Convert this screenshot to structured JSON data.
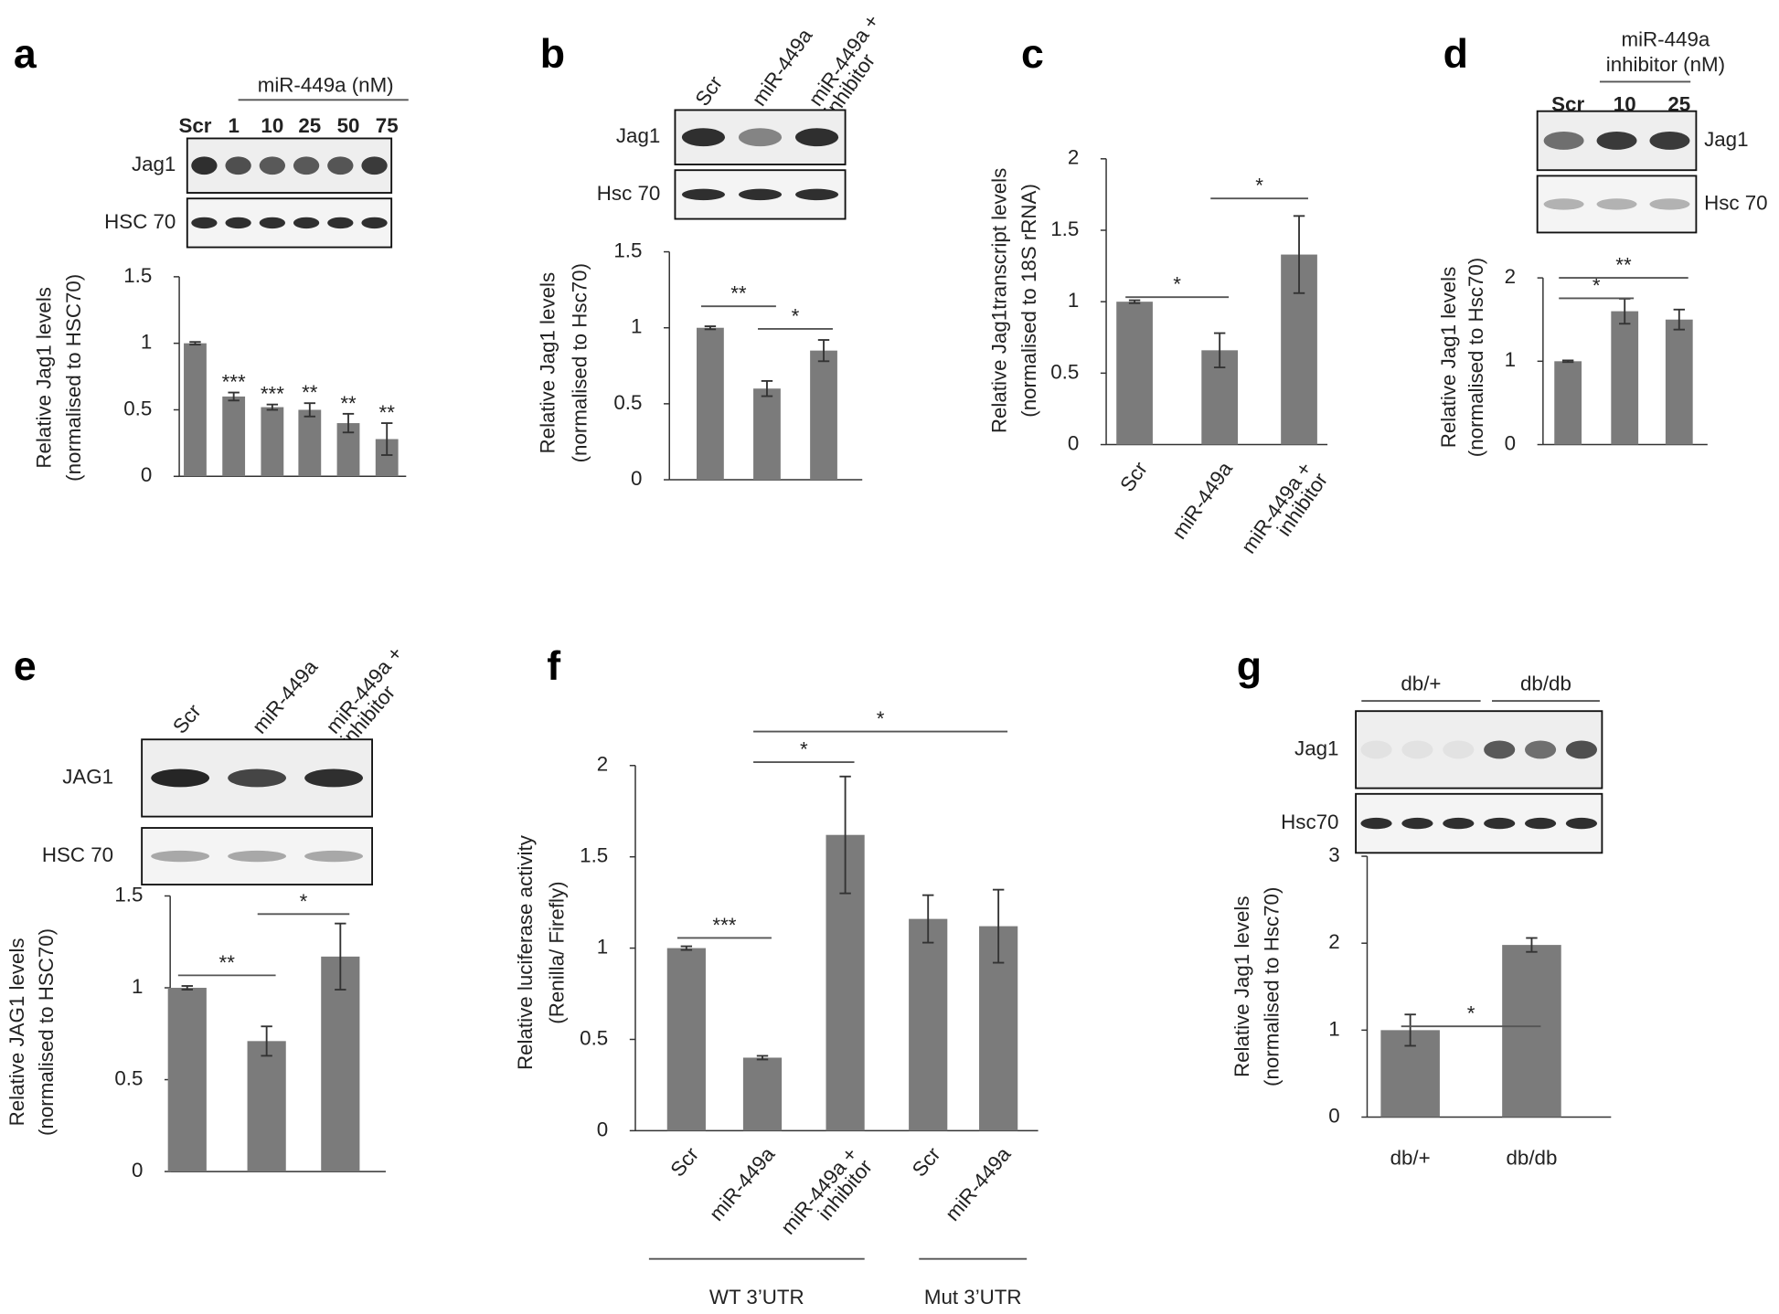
{
  "chart_data": [
    {
      "type": "bar",
      "panel": "a",
      "blot_header": "miR-449a (nM)",
      "blot_rows": [
        "Jag1",
        "HSC 70"
      ],
      "categories": [
        "Scr",
        "1",
        "10",
        "25",
        "50",
        "75"
      ],
      "values": [
        1,
        0.6,
        0.52,
        0.5,
        0.4,
        0.28
      ],
      "errors": [
        0.01,
        0.03,
        0.02,
        0.05,
        0.07,
        0.12
      ],
      "color": "#7b7b7b",
      "ylim": [
        0,
        1.5
      ],
      "yticks": [
        0,
        0.5,
        1,
        1.5
      ],
      "y_label": [
        "Relative Jag1 levels",
        "(normalised to HSC70)"
      ],
      "annotations": [
        {
          "text": "***",
          "bars": [
            1
          ]
        },
        {
          "text": "***",
          "bars": [
            2
          ]
        },
        {
          "text": "**",
          "bars": [
            3
          ]
        },
        {
          "text": "**",
          "bars": [
            4
          ]
        },
        {
          "text": "**",
          "bars": [
            5
          ]
        }
      ]
    },
    {
      "type": "bar",
      "panel": "b",
      "blot_rows": [
        "Jag1",
        "Hsc 70"
      ],
      "categories": [
        "Scr",
        "miR-449a",
        [
          "miR-449a +",
          "inhibitor"
        ]
      ],
      "values": [
        1,
        0.6,
        0.85
      ],
      "errors": [
        0.01,
        0.05,
        0.07
      ],
      "color": "#7b7b7b",
      "ylim": [
        0,
        1.5
      ],
      "yticks": [
        0,
        0.5,
        1,
        1.5
      ],
      "y_label": [
        "Relative Jag1 levels",
        "(normalised to Hsc70)"
      ],
      "annotations": [
        {
          "text": "**",
          "bars": [
            0,
            1
          ]
        },
        {
          "text": "*",
          "bars": [
            1,
            2
          ]
        }
      ]
    },
    {
      "type": "bar",
      "panel": "c",
      "categories": [
        "Scr",
        "miR-449a",
        [
          "miR-449a +",
          "inhibitor"
        ]
      ],
      "values": [
        1,
        0.66,
        1.33
      ],
      "errors": [
        0.01,
        0.12,
        0.27
      ],
      "color": "#7b7b7b",
      "ylim": [
        0,
        2
      ],
      "yticks": [
        0,
        0.5,
        1,
        1.5,
        2
      ],
      "y_label": [
        "Relative Jag1transcript levels",
        "(normalised to 18S rRNA)"
      ],
      "annotations": [
        {
          "text": "*",
          "bars": [
            0,
            1
          ]
        },
        {
          "text": "*",
          "bars": [
            1,
            2
          ]
        }
      ]
    },
    {
      "type": "bar",
      "panel": "d",
      "blot_header": [
        "miR-449a",
        "inhibitor (nM)"
      ],
      "blot_rows": [
        "Jag1",
        "Hsc 70"
      ],
      "categories": [
        "Scr",
        "10",
        "25"
      ],
      "values": [
        1,
        1.6,
        1.5
      ],
      "errors": [
        0.01,
        0.15,
        0.12
      ],
      "color": "#7b7b7b",
      "ylim": [
        0,
        2
      ],
      "yticks": [
        0,
        1,
        2
      ],
      "y_label": [
        "Relative Jag1 levels",
        "(normalised to Hsc70)"
      ],
      "annotations": [
        {
          "text": "*",
          "bars": [
            0,
            1
          ]
        },
        {
          "text": "**",
          "bars": [
            0,
            2
          ]
        }
      ]
    },
    {
      "type": "bar",
      "panel": "e",
      "blot_rows": [
        "JAG1",
        "HSC 70"
      ],
      "categories": [
        "Scr",
        "miR-449a",
        [
          "miR-449a +",
          "inhibitor"
        ]
      ],
      "values": [
        1,
        0.71,
        1.17
      ],
      "errors": [
        0.01,
        0.08,
        0.18
      ],
      "color": "#7b7b7b",
      "ylim": [
        0,
        1.5
      ],
      "yticks": [
        0,
        0.5,
        1,
        1.5
      ],
      "y_label": [
        "Relative JAG1 levels",
        "(normalised to HSC70)"
      ],
      "annotations": [
        {
          "text": "**",
          "bars": [
            0,
            1
          ]
        },
        {
          "text": "*",
          "bars": [
            1,
            2
          ]
        }
      ]
    },
    {
      "type": "bar",
      "panel": "f",
      "categories": [
        "Scr",
        "miR-449a",
        [
          "miR-449a +",
          "inhibitor"
        ],
        "Scr",
        "miR-449a"
      ],
      "groups": [
        "WT 3’UTR",
        "Mut 3’UTR"
      ],
      "values": [
        1,
        0.4,
        1.62,
        1.16,
        1.12
      ],
      "errors": [
        0.01,
        0.01,
        0.32,
        0.13,
        0.2
      ],
      "color": "#7b7b7b",
      "ylim": [
        0,
        2
      ],
      "yticks": [
        0,
        0.5,
        1,
        1.5,
        2
      ],
      "y_label": [
        "Relative luciferase activity",
        "(Renilla/ Firefly)"
      ],
      "annotations": [
        {
          "text": "***",
          "bars": [
            0,
            1
          ]
        },
        {
          "text": "*",
          "bars": [
            1,
            2
          ]
        },
        {
          "text": "*",
          "bars": [
            1,
            4
          ]
        }
      ]
    },
    {
      "type": "bar",
      "panel": "g",
      "blot_rows": [
        "Jag1",
        "Hsc70"
      ],
      "groups": [
        "db/+",
        "db/db"
      ],
      "categories": [
        "db/+",
        "db/db"
      ],
      "values": [
        1,
        1.98
      ],
      "errors": [
        0.18,
        0.08
      ],
      "color": "#7b7b7b",
      "ylim": [
        0,
        3
      ],
      "yticks": [
        0,
        1,
        2,
        3
      ],
      "y_label": [
        "Relative Jag1 levels",
        "(normalised to Hsc70)"
      ],
      "annotations": [
        {
          "text": "*",
          "bars": [
            0,
            1
          ]
        }
      ]
    }
  ]
}
